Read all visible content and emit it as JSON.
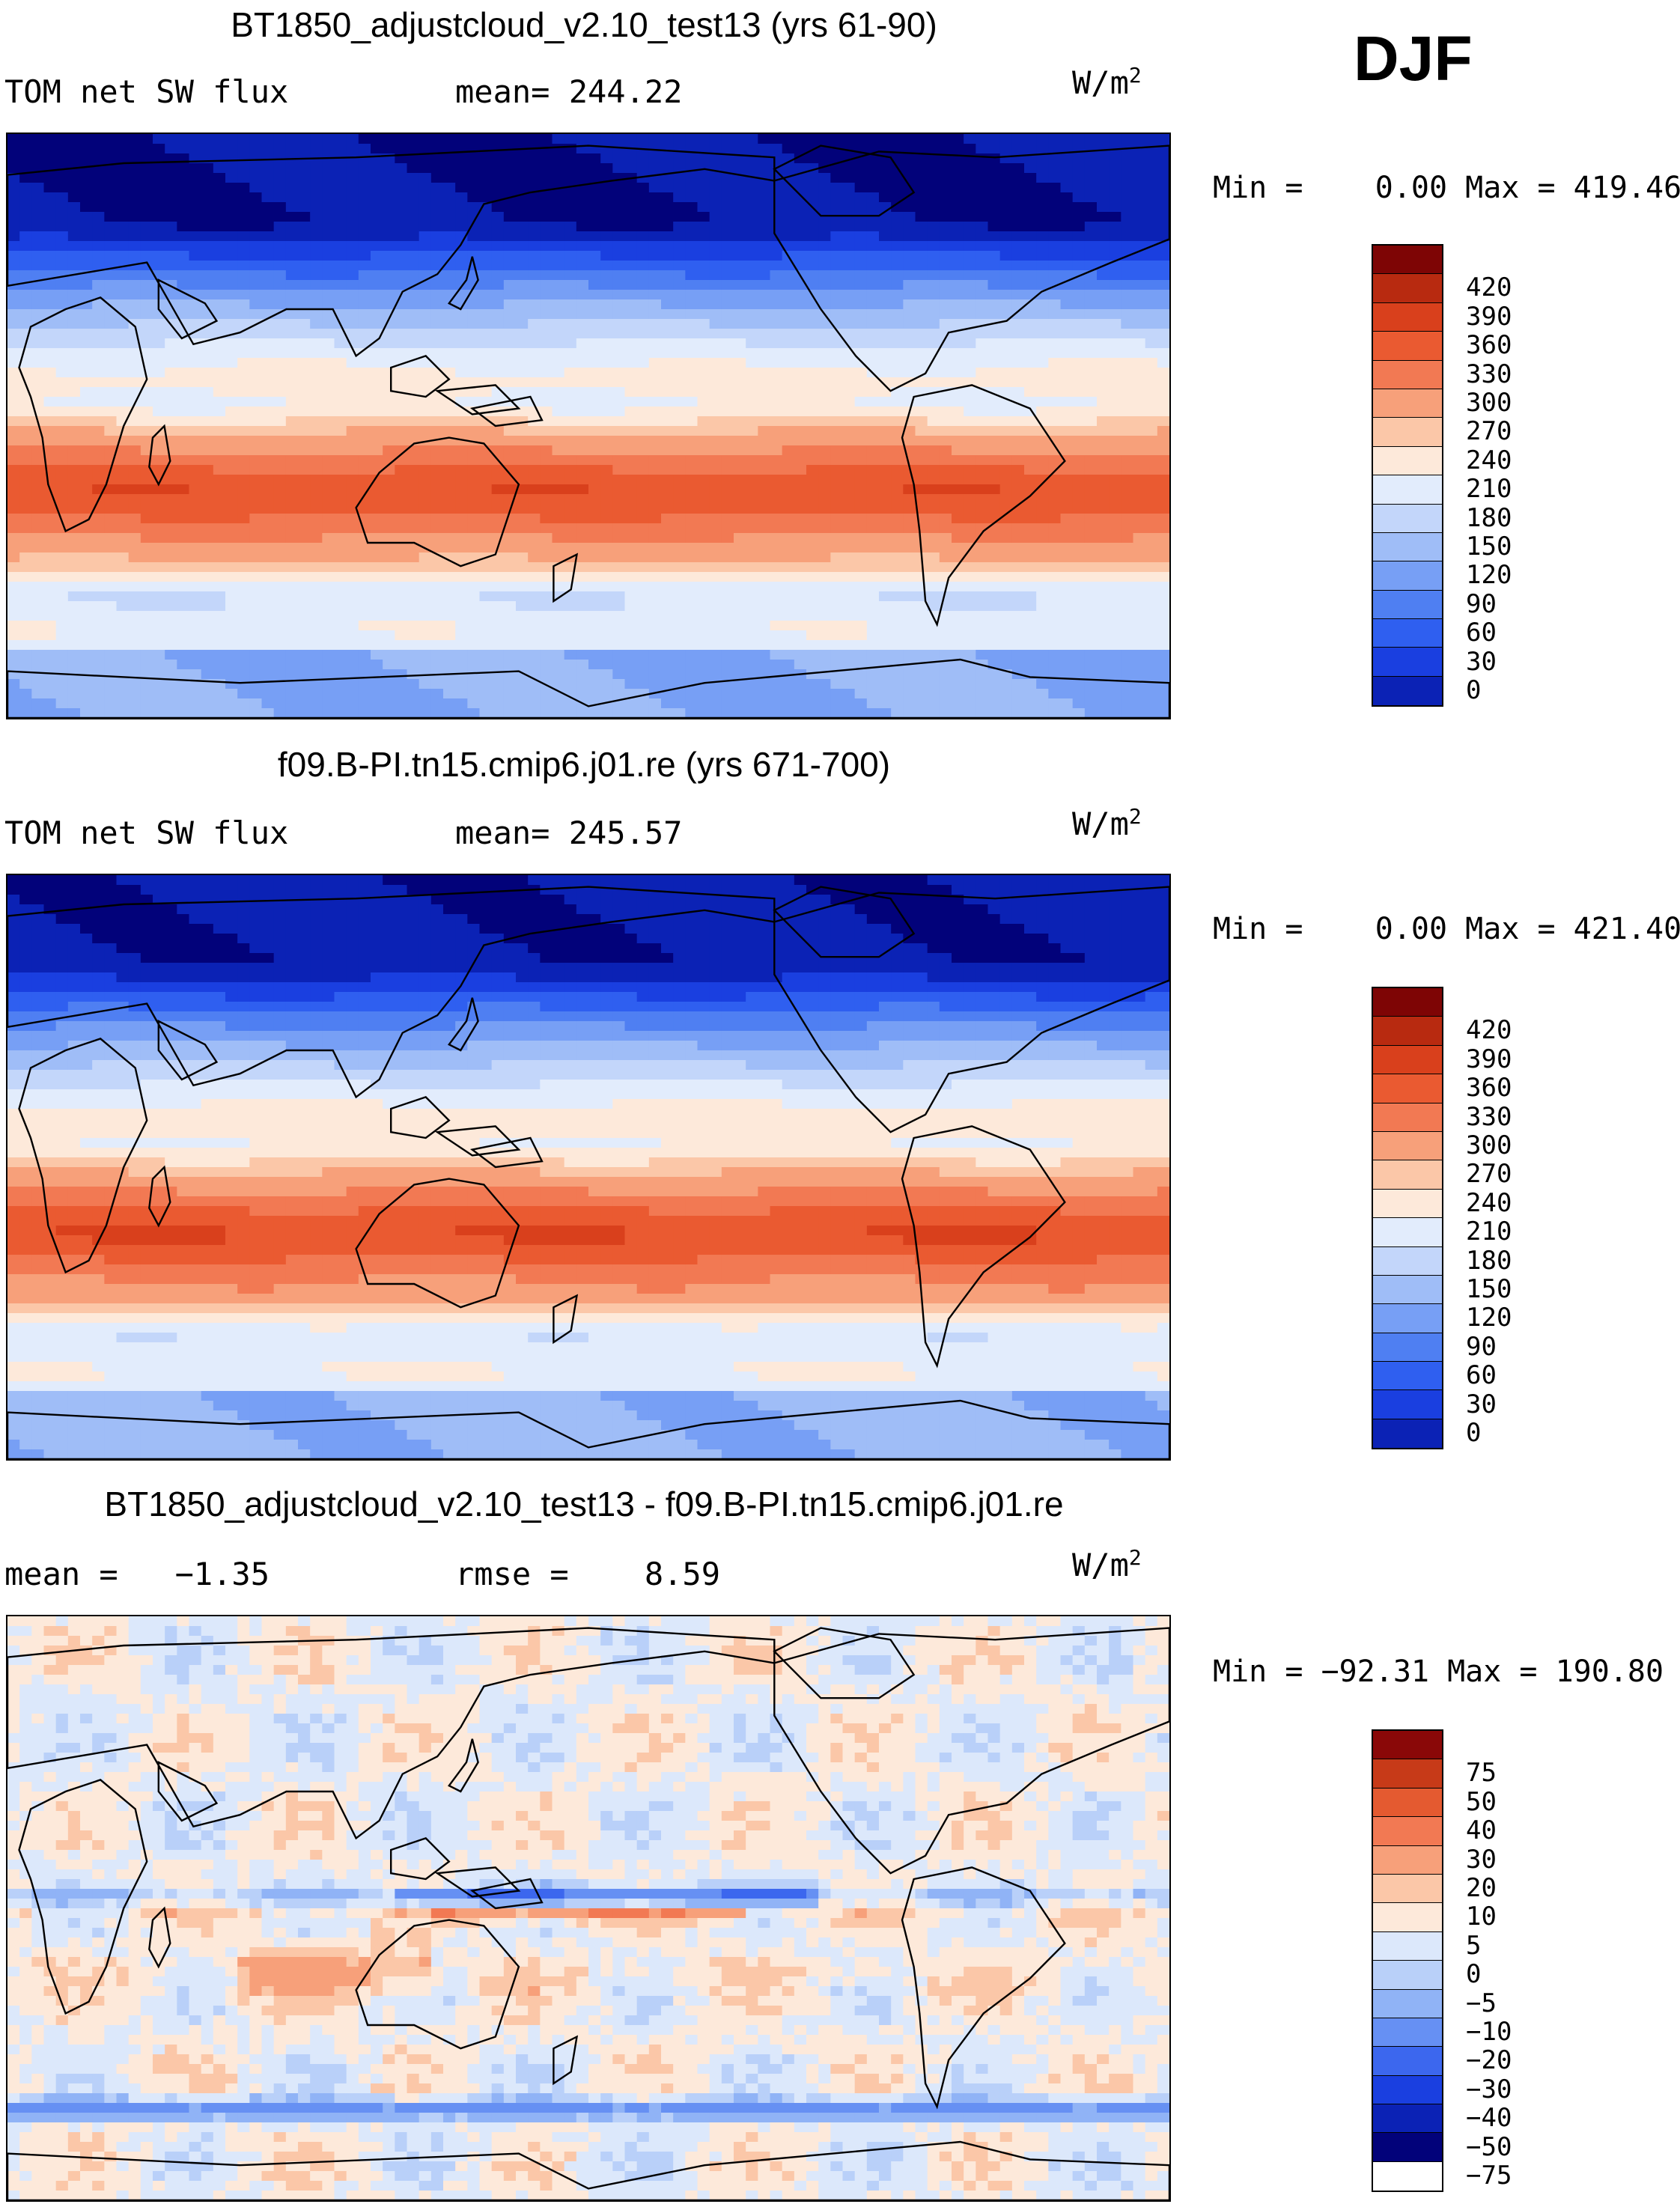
{
  "season": "DJF",
  "colors": {
    "abs_scale": [
      "#02027a",
      "#0b22b5",
      "#1a3fe0",
      "#2f5ff0",
      "#4f7ff2",
      "#779ff5",
      "#9fbdf7",
      "#c3d6fa",
      "#e2ecfc",
      "#fde9da",
      "#fbc7a8",
      "#f7a07a",
      "#f27953",
      "#ea5a31",
      "#d9401c",
      "#b82a10",
      "#7e0505"
    ],
    "diff_scale": [
      "#02027a",
      "#0b22b5",
      "#1a3fe0",
      "#3c67ee",
      "#6690f3",
      "#90b3f6",
      "#b9d0f9",
      "#dce8fb",
      "#fde9da",
      "#fbc7a8",
      "#f7a07a",
      "#f27953",
      "#e45a30",
      "#c73a18",
      "#8a0808"
    ]
  },
  "chart_data": [
    {
      "type": "heatmap",
      "title": "BT1850_adjustcloud_v2.10_test13 (yrs 61-90)",
      "variable": "TOM net SW flux",
      "stat_text": "mean= 244.22",
      "units_base": "W/m",
      "units_exp": "2",
      "min_text": "Min =    0.00",
      "max_text": "Max = 419.46",
      "levels": [
        "420",
        "390",
        "360",
        "330",
        "300",
        "270",
        "240",
        "210",
        "180",
        "150",
        "120",
        "90",
        "60",
        "30",
        "0"
      ],
      "scale": "abs",
      "variant": 1
    },
    {
      "type": "heatmap",
      "title": "f09.B-PI.tn15.cmip6.j01.re (yrs 671-700)",
      "variable": "TOM net SW flux",
      "stat_text": "mean= 245.57",
      "units_base": "W/m",
      "units_exp": "2",
      "min_text": "Min =    0.00",
      "max_text": "Max = 421.40",
      "levels": [
        "420",
        "390",
        "360",
        "330",
        "300",
        "270",
        "240",
        "210",
        "180",
        "150",
        "120",
        "90",
        "60",
        "30",
        "0"
      ],
      "scale": "abs",
      "variant": 2
    },
    {
      "type": "heatmap",
      "title": "BT1850_adjustcloud_v2.10_test13 - f09.B-PI.tn15.cmip6.j01.re",
      "variable": "mean =   −1.35",
      "stat_text": "rmse =    8.59",
      "units_base": "W/m",
      "units_exp": "2",
      "min_text": "Min = −92.31",
      "max_text": "Max = 190.80",
      "levels": [
        "75",
        "50",
        "40",
        "30",
        "20",
        "10",
        "5",
        "0",
        "−5",
        "−10",
        "−20",
        "−30",
        "−40",
        "−50",
        "−75"
      ],
      "scale": "diff",
      "variant": 3
    }
  ]
}
